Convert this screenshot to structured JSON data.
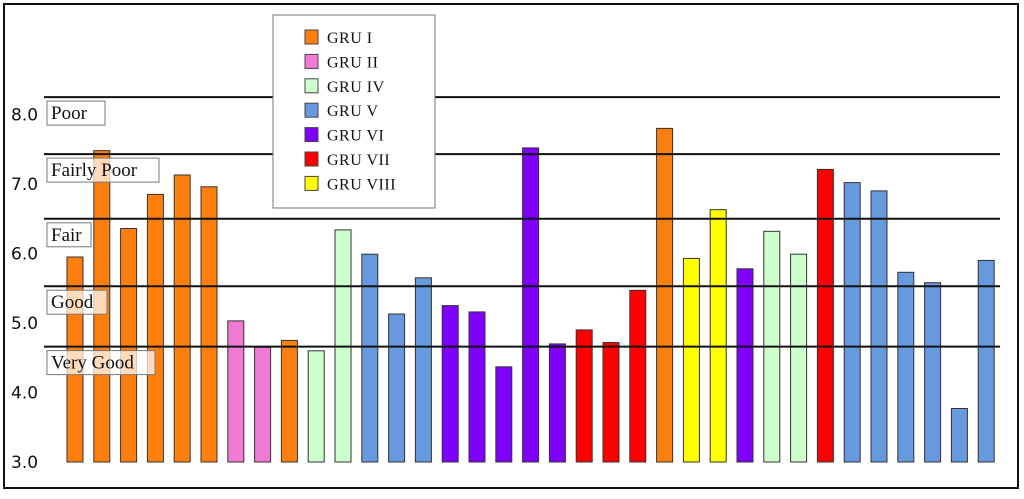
{
  "chart_data": {
    "type": "bar",
    "title": "",
    "xlabel": "",
    "ylabel": "",
    "ylim": [
      3.0,
      8.8
    ],
    "yticks": [
      "3.0",
      "4.0",
      "5.0",
      "6.0",
      "7.0",
      "8.0"
    ],
    "grid": false,
    "legend_position": "top-center",
    "thresholds": [
      {
        "label": "Poor",
        "value": 8.25
      },
      {
        "label": "Fairly Poor",
        "value": 7.43
      },
      {
        "label": "Fair",
        "value": 6.5
      },
      {
        "label": "Good",
        "value": 5.53
      },
      {
        "label": "Very Good",
        "value": 4.66
      }
    ],
    "groups": [
      {
        "name": "GRU I",
        "color": "#ff7f0e"
      },
      {
        "name": "GRU II",
        "color": "#f07ad4"
      },
      {
        "name": "GRU IV",
        "color": "#ccffcc"
      },
      {
        "name": "GRU V",
        "color": "#6699dd"
      },
      {
        "name": "GRU VI",
        "color": "#7f00ff"
      },
      {
        "name": "GRU VII",
        "color": "#ff0000"
      },
      {
        "name": "GRU VIII",
        "color": "#ffff00"
      }
    ],
    "bars": [
      {
        "group": "GRU I",
        "value": 5.95
      },
      {
        "group": "GRU I",
        "value": 7.48
      },
      {
        "group": "GRU I",
        "value": 6.36
      },
      {
        "group": "GRU I",
        "value": 6.85
      },
      {
        "group": "GRU I",
        "value": 7.13
      },
      {
        "group": "GRU I",
        "value": 6.96
      },
      {
        "group": "GRU II",
        "value": 5.03
      },
      {
        "group": "GRU II",
        "value": 4.65
      },
      {
        "group": "GRU I",
        "value": 4.75
      },
      {
        "group": "GRU IV",
        "value": 4.6
      },
      {
        "group": "GRU IV",
        "value": 6.34
      },
      {
        "group": "GRU V",
        "value": 5.99
      },
      {
        "group": "GRU V",
        "value": 5.13
      },
      {
        "group": "GRU V",
        "value": 5.65
      },
      {
        "group": "GRU VI",
        "value": 5.25
      },
      {
        "group": "GRU VI",
        "value": 5.16
      },
      {
        "group": "GRU VI",
        "value": 4.37
      },
      {
        "group": "GRU VI",
        "value": 7.52
      },
      {
        "group": "GRU VI",
        "value": 4.7
      },
      {
        "group": "GRU VII",
        "value": 4.9
      },
      {
        "group": "GRU VII",
        "value": 4.72
      },
      {
        "group": "GRU VII",
        "value": 5.47
      },
      {
        "group": "GRU I",
        "value": 7.8
      },
      {
        "group": "GRU VIII",
        "value": 5.93
      },
      {
        "group": "GRU VIII",
        "value": 6.63
      },
      {
        "group": "GRU VI",
        "value": 5.78
      },
      {
        "group": "GRU IV",
        "value": 6.32
      },
      {
        "group": "GRU IV",
        "value": 5.99
      },
      {
        "group": "GRU VII",
        "value": 7.21
      },
      {
        "group": "GRU V",
        "value": 7.02
      },
      {
        "group": "GRU V",
        "value": 6.9
      },
      {
        "group": "GRU V",
        "value": 5.73
      },
      {
        "group": "GRU V",
        "value": 5.58
      },
      {
        "group": "GRU V",
        "value": 3.77
      },
      {
        "group": "GRU V",
        "value": 5.9
      }
    ]
  }
}
